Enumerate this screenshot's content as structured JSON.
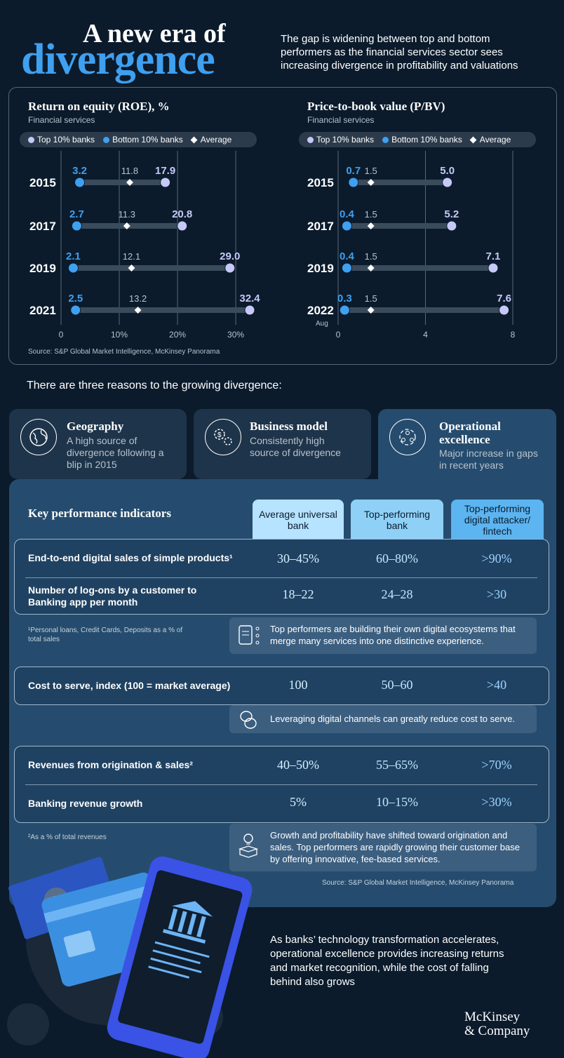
{
  "header": {
    "title_line1": "A new era of",
    "title_line2": "divergence",
    "intro": "The gap is widening between top and bottom performers as the financial services sector sees increasing divergence in profitability and valuations"
  },
  "legend": {
    "top": "Top 10% banks",
    "bottom": "Bottom 10% banks",
    "average": "Average"
  },
  "colors": {
    "top": "#c6c9f7",
    "bottom": "#3fa0f0",
    "accent": "#3fa0f0",
    "bar": "#3a4c5c"
  },
  "chart_data": [
    {
      "type": "dumbbell",
      "title": "Return on equity (ROE), %",
      "subtitle": "Financial services",
      "categories": [
        "2015",
        "2017",
        "2019",
        "2021"
      ],
      "category_sublabels": [
        "",
        "",
        "",
        ""
      ],
      "series": [
        {
          "name": "Bottom 10% banks",
          "values": [
            3.2,
            2.7,
            2.1,
            2.5
          ],
          "labels": [
            "3.2",
            "2.7",
            "2.1",
            "2.5"
          ]
        },
        {
          "name": "Average",
          "values": [
            11.8,
            11.3,
            12.1,
            13.2
          ],
          "labels": [
            "11.8",
            "11.3",
            "12.1",
            "13.2"
          ]
        },
        {
          "name": "Top 10% banks",
          "values": [
            17.9,
            20.8,
            29.0,
            32.4
          ],
          "labels": [
            "17.9",
            "20.8",
            "29.0",
            "32.4"
          ]
        }
      ],
      "xlim": [
        0,
        32.4
      ],
      "xticks": [
        0,
        10,
        20,
        30
      ],
      "xtick_labels": [
        "0",
        "10%",
        "20%",
        "30%"
      ]
    },
    {
      "type": "dumbbell",
      "title": "Price-to-book value (P/BV)",
      "subtitle": "Financial services",
      "categories": [
        "2015",
        "2017",
        "2019",
        "2022"
      ],
      "category_sublabels": [
        "",
        "",
        "",
        "Aug"
      ],
      "series": [
        {
          "name": "Bottom 10% banks",
          "values": [
            0.7,
            0.4,
            0.4,
            0.3
          ],
          "labels": [
            "0.7",
            "0.4",
            "0.4",
            "0.3"
          ]
        },
        {
          "name": "Average",
          "values": [
            1.5,
            1.5,
            1.5,
            1.5
          ],
          "labels": [
            "1.5",
            "1.5",
            "1.5",
            "1.5"
          ]
        },
        {
          "name": "Top 10% banks",
          "values": [
            5.0,
            5.2,
            7.1,
            7.6
          ],
          "labels": [
            "5.0",
            "5.2",
            "7.1",
            "7.6"
          ]
        }
      ],
      "xlim": [
        0,
        8
      ],
      "xticks": [
        0,
        4,
        8
      ],
      "xtick_labels": [
        "0",
        "4",
        "8"
      ]
    }
  ],
  "chart_source": "Source: S&P Global Market Intelligence, McKinsey Panorama",
  "reasons_intro": "There are three reasons to the growing divergence:",
  "reasons": [
    {
      "title": "Geography",
      "desc": "A high source of divergence following a blip in 2015",
      "icon": "globe-icon"
    },
    {
      "title": "Business model",
      "desc": "Consistently high source of divergence",
      "icon": "gears-dollar-icon"
    },
    {
      "title": "Operational excellence",
      "desc": "Major increase in gaps in recent years",
      "icon": "team-cycle-icon"
    }
  ],
  "kpi": {
    "heading": "Key performance indicators",
    "columns": [
      "Average universal bank",
      "Top-performing bank",
      "Top-performing digital attacker/ fintech"
    ],
    "column_colors": [
      "#b6e3ff",
      "#8fd0f7",
      "#5cb4f0"
    ],
    "rows": [
      {
        "label": "End-to-end digital sales of simple products¹",
        "values": [
          "30–45%",
          "60–80%",
          ">90%"
        ]
      },
      {
        "label": "Number of log-ons by a customer to Banking app per month",
        "values": [
          "18–22",
          "24–28",
          ">30"
        ]
      },
      {
        "label": "Cost to serve, index (100 = market average)",
        "values": [
          "100",
          "50–60",
          ">40"
        ]
      },
      {
        "label": "Revenues from origination & sales²",
        "values": [
          "40–50%",
          "55–65%",
          ">70%"
        ]
      },
      {
        "label": "Banking revenue growth",
        "values": [
          "5%",
          "10–15%",
          ">30%"
        ]
      }
    ],
    "footnote1": "¹Personal loans, Credit Cards, Deposits as a % of total sales",
    "footnote2": "²As a % of total revenues",
    "insights": [
      "Top performers are building their own digital ecosystems that merge many services into one distinctive experience.",
      "Leveraging digital channels can greatly reduce cost to serve.",
      "Growth and profitability have shifted toward origination and sales. Top performers are rapidly growing their customer base by offering innovative, fee-based services."
    ],
    "source": "Source: S&P Global Market Intelligence, McKinsey Panorama"
  },
  "closing": "As banks’ technology transformation accelerates, operational excellence provides increasing returns and market recognition, while the cost of falling behind also grows",
  "logo": {
    "line1": "McKinsey",
    "line2": "& Company"
  }
}
